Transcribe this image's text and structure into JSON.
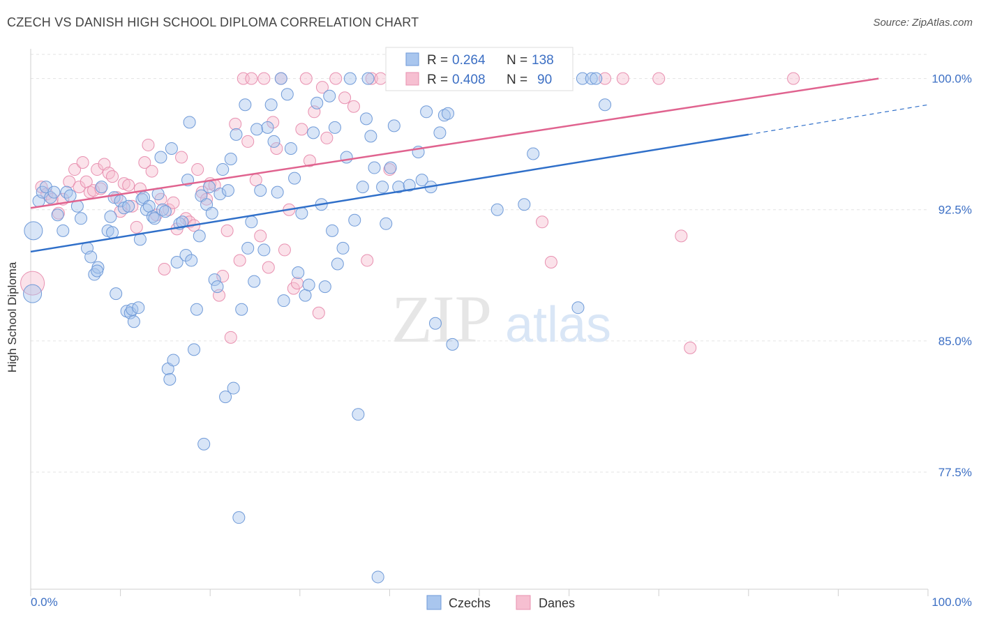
{
  "header": {
    "title": "CZECH VS DANISH HIGH SCHOOL DIPLOMA CORRELATION CHART",
    "source": "Source: ZipAtlas.com"
  },
  "watermark": {
    "zip": "ZIP",
    "atlas": "atlas"
  },
  "legend": {
    "czech": {
      "r_label": "R = ",
      "r_value": "0.264",
      "n_label": "N = ",
      "n_value": "138"
    },
    "danes": {
      "r_label": "R = ",
      "r_value": "0.408",
      "n_label": "N = ",
      "n_value": "90"
    }
  },
  "bottom_legend": {
    "czechs": "Czechs",
    "danes": "Danes"
  },
  "colors": {
    "czech_fill": "#a9c6ee",
    "czech_stroke": "#6f9ad8",
    "czech_line": "#2f6fc9",
    "danes_fill": "#f6bfd1",
    "danes_stroke": "#e890b0",
    "danes_line": "#e0638f",
    "tick_text": "#3c6fc4",
    "grid": "#e3e3e3"
  },
  "chart_data": {
    "type": "scatter",
    "title": "CZECH VS DANISH HIGH SCHOOL DIPLOMA CORRELATION CHART",
    "ylabel": "High School Diploma",
    "xlabel": "",
    "xlim": [
      0,
      100
    ],
    "ylim": [
      70.8,
      101.7
    ],
    "x_tick_labels": [
      "0.0%",
      "100.0%"
    ],
    "y_ticks": [
      {
        "value": 100.0,
        "label": "100.0%"
      },
      {
        "value": 92.5,
        "label": "92.5%"
      },
      {
        "value": 85.0,
        "label": "85.0%"
      },
      {
        "value": 77.5,
        "label": "77.5%"
      }
    ],
    "grid": true,
    "legend_position": "top-center",
    "series": [
      {
        "name": "Czechs",
        "r": 0.264,
        "n": 138,
        "trend": {
          "x0": 0,
          "y0": 90.1,
          "x1": 80,
          "y1": 96.8,
          "dash_to_x": 100,
          "dash_to_y": 98.5
        },
        "points": [
          [
            0.3,
            91.3
          ],
          [
            0.2,
            87.7
          ],
          [
            0.9,
            93.0
          ],
          [
            1.3,
            93.5
          ],
          [
            1.7,
            93.8
          ],
          [
            2.2,
            93.2
          ],
          [
            2.6,
            93.5
          ],
          [
            3.0,
            92.2
          ],
          [
            3.6,
            91.3
          ],
          [
            4.0,
            93.5
          ],
          [
            4.4,
            93.3
          ],
          [
            5.2,
            92.7
          ],
          [
            5.6,
            92.0
          ],
          [
            6.3,
            90.3
          ],
          [
            6.7,
            89.8
          ],
          [
            7.1,
            88.8
          ],
          [
            7.5,
            89.2
          ],
          [
            7.4,
            89.0
          ],
          [
            7.9,
            93.8
          ],
          [
            8.6,
            91.3
          ],
          [
            8.9,
            92.1
          ],
          [
            9.1,
            91.2
          ],
          [
            9.3,
            93.2
          ],
          [
            9.5,
            87.7
          ],
          [
            10.0,
            93.0
          ],
          [
            10.4,
            92.6
          ],
          [
            10.7,
            86.7
          ],
          [
            10.9,
            92.7
          ],
          [
            11.1,
            86.6
          ],
          [
            11.3,
            86.8
          ],
          [
            11.5,
            86.1
          ],
          [
            12.0,
            86.9
          ],
          [
            12.2,
            90.8
          ],
          [
            12.4,
            93.1
          ],
          [
            12.6,
            93.2
          ],
          [
            12.9,
            92.5
          ],
          [
            13.2,
            92.7
          ],
          [
            13.6,
            92.1
          ],
          [
            13.8,
            92.0
          ],
          [
            14.2,
            93.4
          ],
          [
            14.5,
            95.5
          ],
          [
            14.7,
            92.5
          ],
          [
            15.0,
            92.4
          ],
          [
            15.3,
            83.4
          ],
          [
            15.5,
            82.8
          ],
          [
            15.7,
            96.0
          ],
          [
            15.9,
            83.9
          ],
          [
            16.3,
            89.5
          ],
          [
            16.6,
            91.7
          ],
          [
            16.9,
            91.8
          ],
          [
            17.3,
            89.9
          ],
          [
            17.5,
            94.2
          ],
          [
            17.7,
            97.5
          ],
          [
            17.9,
            89.6
          ],
          [
            18.2,
            84.5
          ],
          [
            18.5,
            86.8
          ],
          [
            18.8,
            91.0
          ],
          [
            19.0,
            93.3
          ],
          [
            19.3,
            79.1
          ],
          [
            19.6,
            92.8
          ],
          [
            19.9,
            93.8
          ],
          [
            20.2,
            92.3
          ],
          [
            20.5,
            88.5
          ],
          [
            20.8,
            88.1
          ],
          [
            21.1,
            93.4
          ],
          [
            21.4,
            94.8
          ],
          [
            21.7,
            81.8
          ],
          [
            22.0,
            93.6
          ],
          [
            22.3,
            95.4
          ],
          [
            22.6,
            82.3
          ],
          [
            22.9,
            96.8
          ],
          [
            23.2,
            74.9
          ],
          [
            23.5,
            86.8
          ],
          [
            23.9,
            98.5
          ],
          [
            24.2,
            90.3
          ],
          [
            24.6,
            91.8
          ],
          [
            24.9,
            88.4
          ],
          [
            25.2,
            97.1
          ],
          [
            25.6,
            93.6
          ],
          [
            26.0,
            90.2
          ],
          [
            26.4,
            97.2
          ],
          [
            26.8,
            98.5
          ],
          [
            27.1,
            96.4
          ],
          [
            27.5,
            93.5
          ],
          [
            27.9,
            100.0
          ],
          [
            28.2,
            87.3
          ],
          [
            28.6,
            99.1
          ],
          [
            29.0,
            96.0
          ],
          [
            29.4,
            94.3
          ],
          [
            29.8,
            88.9
          ],
          [
            30.2,
            92.3
          ],
          [
            30.6,
            87.6
          ],
          [
            31.0,
            88.2
          ],
          [
            31.5,
            96.9
          ],
          [
            31.9,
            98.6
          ],
          [
            32.4,
            92.8
          ],
          [
            32.8,
            88.1
          ],
          [
            33.3,
            99.0
          ],
          [
            33.6,
            91.3
          ],
          [
            33.9,
            97.2
          ],
          [
            34.2,
            89.4
          ],
          [
            34.8,
            90.3
          ],
          [
            35.2,
            95.5
          ],
          [
            35.6,
            100.0
          ],
          [
            36.1,
            91.9
          ],
          [
            36.5,
            80.8
          ],
          [
            37.0,
            93.8
          ],
          [
            37.4,
            97.7
          ],
          [
            37.9,
            96.7
          ],
          [
            38.3,
            94.9
          ],
          [
            38.7,
            71.5
          ],
          [
            39.2,
            93.8
          ],
          [
            39.6,
            91.7
          ],
          [
            40.1,
            94.9
          ],
          [
            40.5,
            97.3
          ],
          [
            41.0,
            93.8
          ],
          [
            41.6,
            100.0
          ],
          [
            42.2,
            93.9
          ],
          [
            42.7,
            100.0
          ],
          [
            43.2,
            95.8
          ],
          [
            43.6,
            94.2
          ],
          [
            44.1,
            98.1
          ],
          [
            44.6,
            93.8
          ],
          [
            45.1,
            86.0
          ],
          [
            45.6,
            96.9
          ],
          [
            46.1,
            97.9
          ],
          [
            46.5,
            98.0
          ],
          [
            47.0,
            84.8
          ],
          [
            47.5,
            100.0
          ],
          [
            52.0,
            92.5
          ],
          [
            55.0,
            92.8
          ],
          [
            56.0,
            95.7
          ],
          [
            61.0,
            86.9
          ],
          [
            61.5,
            100.0
          ],
          [
            62.5,
            100.0
          ],
          [
            63.0,
            100.0
          ],
          [
            64.0,
            98.5
          ],
          [
            37.6,
            100.0
          ]
        ]
      },
      {
        "name": "Danes",
        "r": 0.408,
        "n": 90,
        "trend": {
          "x0": 0,
          "y0": 92.6,
          "x1": 94.5,
          "y1": 100.0
        },
        "points": [
          [
            0.2,
            88.3
          ],
          [
            1.2,
            93.8
          ],
          [
            1.8,
            93.4
          ],
          [
            2.4,
            93.1
          ],
          [
            3.1,
            92.3
          ],
          [
            3.6,
            93.1
          ],
          [
            4.3,
            94.1
          ],
          [
            4.9,
            94.8
          ],
          [
            5.4,
            93.8
          ],
          [
            5.8,
            95.2
          ],
          [
            6.2,
            94.1
          ],
          [
            6.6,
            93.5
          ],
          [
            7.0,
            93.6
          ],
          [
            7.4,
            94.8
          ],
          [
            7.8,
            93.7
          ],
          [
            8.2,
            95.1
          ],
          [
            8.7,
            94.6
          ],
          [
            9.1,
            94.4
          ],
          [
            9.6,
            93.2
          ],
          [
            10.0,
            92.4
          ],
          [
            10.4,
            94.0
          ],
          [
            10.9,
            93.9
          ],
          [
            11.3,
            92.7
          ],
          [
            11.8,
            91.5
          ],
          [
            12.2,
            93.7
          ],
          [
            12.7,
            95.2
          ],
          [
            13.1,
            96.2
          ],
          [
            13.5,
            94.7
          ],
          [
            14.0,
            92.2
          ],
          [
            14.5,
            93.1
          ],
          [
            14.9,
            89.1
          ],
          [
            15.4,
            92.5
          ],
          [
            15.9,
            92.9
          ],
          [
            16.3,
            91.4
          ],
          [
            16.8,
            95.5
          ],
          [
            17.3,
            92.0
          ],
          [
            17.7,
            91.8
          ],
          [
            18.2,
            91.6
          ],
          [
            18.6,
            94.8
          ],
          [
            19.1,
            93.5
          ],
          [
            19.6,
            93.1
          ],
          [
            20.0,
            94.0
          ],
          [
            20.5,
            93.9
          ],
          [
            21.0,
            87.6
          ],
          [
            21.4,
            88.7
          ],
          [
            21.9,
            91.3
          ],
          [
            22.3,
            85.2
          ],
          [
            22.8,
            97.4
          ],
          [
            23.3,
            89.6
          ],
          [
            23.7,
            100.0
          ],
          [
            24.2,
            96.4
          ],
          [
            24.6,
            100.0
          ],
          [
            25.1,
            94.2
          ],
          [
            25.6,
            91.0
          ],
          [
            26.0,
            100.0
          ],
          [
            26.5,
            89.2
          ],
          [
            27.0,
            97.5
          ],
          [
            27.4,
            96.0
          ],
          [
            27.9,
            100.0
          ],
          [
            28.3,
            90.2
          ],
          [
            28.8,
            92.5
          ],
          [
            29.3,
            88.0
          ],
          [
            29.7,
            88.3
          ],
          [
            30.2,
            97.1
          ],
          [
            30.7,
            100.0
          ],
          [
            31.1,
            95.3
          ],
          [
            31.6,
            98.1
          ],
          [
            32.1,
            86.6
          ],
          [
            32.5,
            99.5
          ],
          [
            33.0,
            96.6
          ],
          [
            34.0,
            100.0
          ],
          [
            35.0,
            98.9
          ],
          [
            36.0,
            98.4
          ],
          [
            37.5,
            89.6
          ],
          [
            38.0,
            100.0
          ],
          [
            39.0,
            100.0
          ],
          [
            40.0,
            94.8
          ],
          [
            42.0,
            100.0
          ],
          [
            44.0,
            100.0
          ],
          [
            47.0,
            100.0
          ],
          [
            50.0,
            100.0
          ],
          [
            53.5,
            100.0
          ],
          [
            57.0,
            91.8
          ],
          [
            58.0,
            89.5
          ],
          [
            64.0,
            100.0
          ],
          [
            66.0,
            100.0
          ],
          [
            70.0,
            100.0
          ],
          [
            72.5,
            91.0
          ],
          [
            73.5,
            84.6
          ],
          [
            85.0,
            100.0
          ]
        ]
      }
    ]
  }
}
